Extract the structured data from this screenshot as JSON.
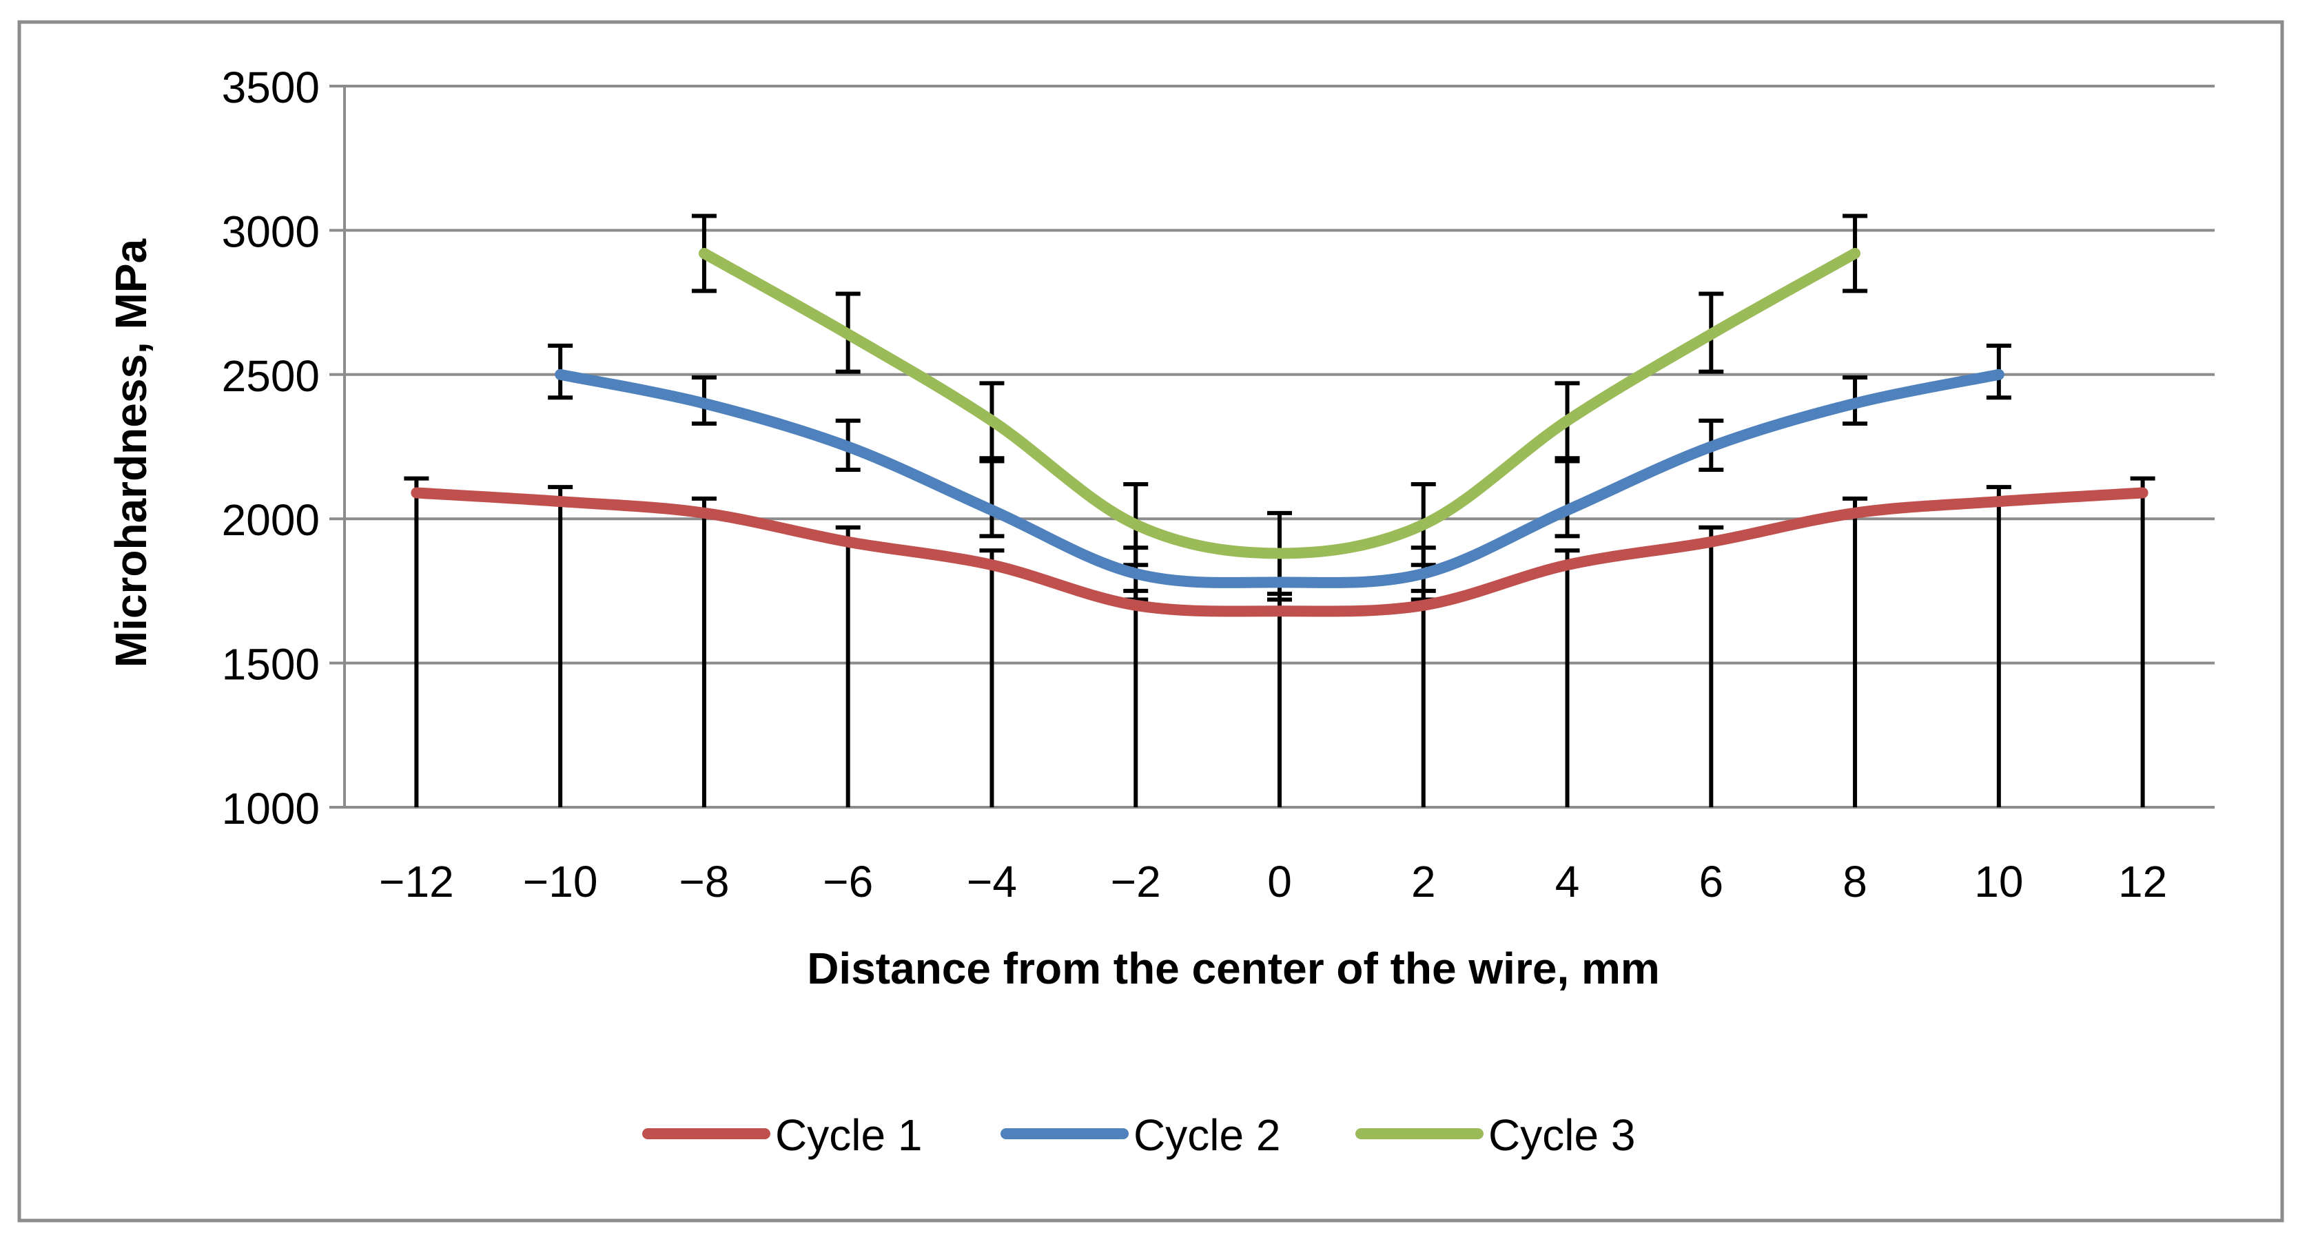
{
  "chart_data": {
    "type": "line",
    "title": "",
    "xlabel": "Distance from the center of the wire, mm",
    "ylabel": "Microhardness,  MPa",
    "ylim": [
      1000,
      3500
    ],
    "yticks": [
      1000,
      1500,
      2000,
      2500,
      3000,
      3500
    ],
    "ytick_labels": [
      "1000",
      "1500",
      "2000",
      "2500",
      "3000",
      "3500"
    ],
    "xticks": [
      -12,
      -10,
      -8,
      -6,
      -4,
      -2,
      0,
      2,
      4,
      6,
      8,
      10,
      12
    ],
    "xtick_labels": [
      "−12",
      "−10",
      "−8",
      "−6",
      "−4",
      "−2",
      "0",
      "2",
      "4",
      "6",
      "8",
      "10",
      "12"
    ],
    "grid": "horizontal",
    "legend_position": "bottom",
    "series": [
      {
        "name": "Cycle 1",
        "color": "#c0504d",
        "x": [
          -12,
          -10,
          -8,
          -6,
          -4,
          -2,
          0,
          2,
          4,
          6,
          8,
          10,
          12
        ],
        "values": [
          2090,
          2060,
          2020,
          1920,
          1840,
          1700,
          1680,
          1700,
          1840,
          1920,
          2020,
          2060,
          2090
        ],
        "error_upper": [
          2140,
          2110,
          2070,
          1970,
          1890,
          1750,
          1720,
          1750,
          1890,
          1970,
          2070,
          2110,
          2140
        ],
        "error_lower": [
          1000,
          1000,
          1000,
          1000,
          1000,
          1000,
          1000,
          1000,
          1000,
          1000,
          1000,
          1000,
          1000
        ]
      },
      {
        "name": "Cycle 2",
        "color": "#4f81bd",
        "x": [
          -10,
          -8,
          -6,
          -4,
          -2,
          0,
          2,
          4,
          6,
          8,
          10
        ],
        "values": [
          2500,
          2400,
          2250,
          2030,
          1810,
          1780,
          1810,
          2030,
          2250,
          2400,
          2500
        ],
        "error_upper": [
          2600,
          2490,
          2340,
          2200,
          1900,
          1880,
          1900,
          2200,
          2340,
          2490,
          2600
        ],
        "error_lower": [
          2420,
          2330,
          2170,
          1940,
          1720,
          1690,
          1720,
          1940,
          2170,
          2330,
          2420
        ]
      },
      {
        "name": "Cycle 3",
        "color": "#9bbb59",
        "x": [
          -8,
          -6,
          -4,
          -2,
          0,
          2,
          4,
          6,
          8
        ],
        "values": [
          2920,
          2640,
          2340,
          1980,
          1880,
          1980,
          2340,
          2640,
          2920
        ],
        "error_upper": [
          3050,
          2780,
          2470,
          2120,
          2020,
          2120,
          2470,
          2780,
          3050
        ],
        "error_lower": [
          2790,
          2510,
          2210,
          1840,
          1740,
          1840,
          2210,
          2510,
          2790
        ]
      }
    ]
  }
}
